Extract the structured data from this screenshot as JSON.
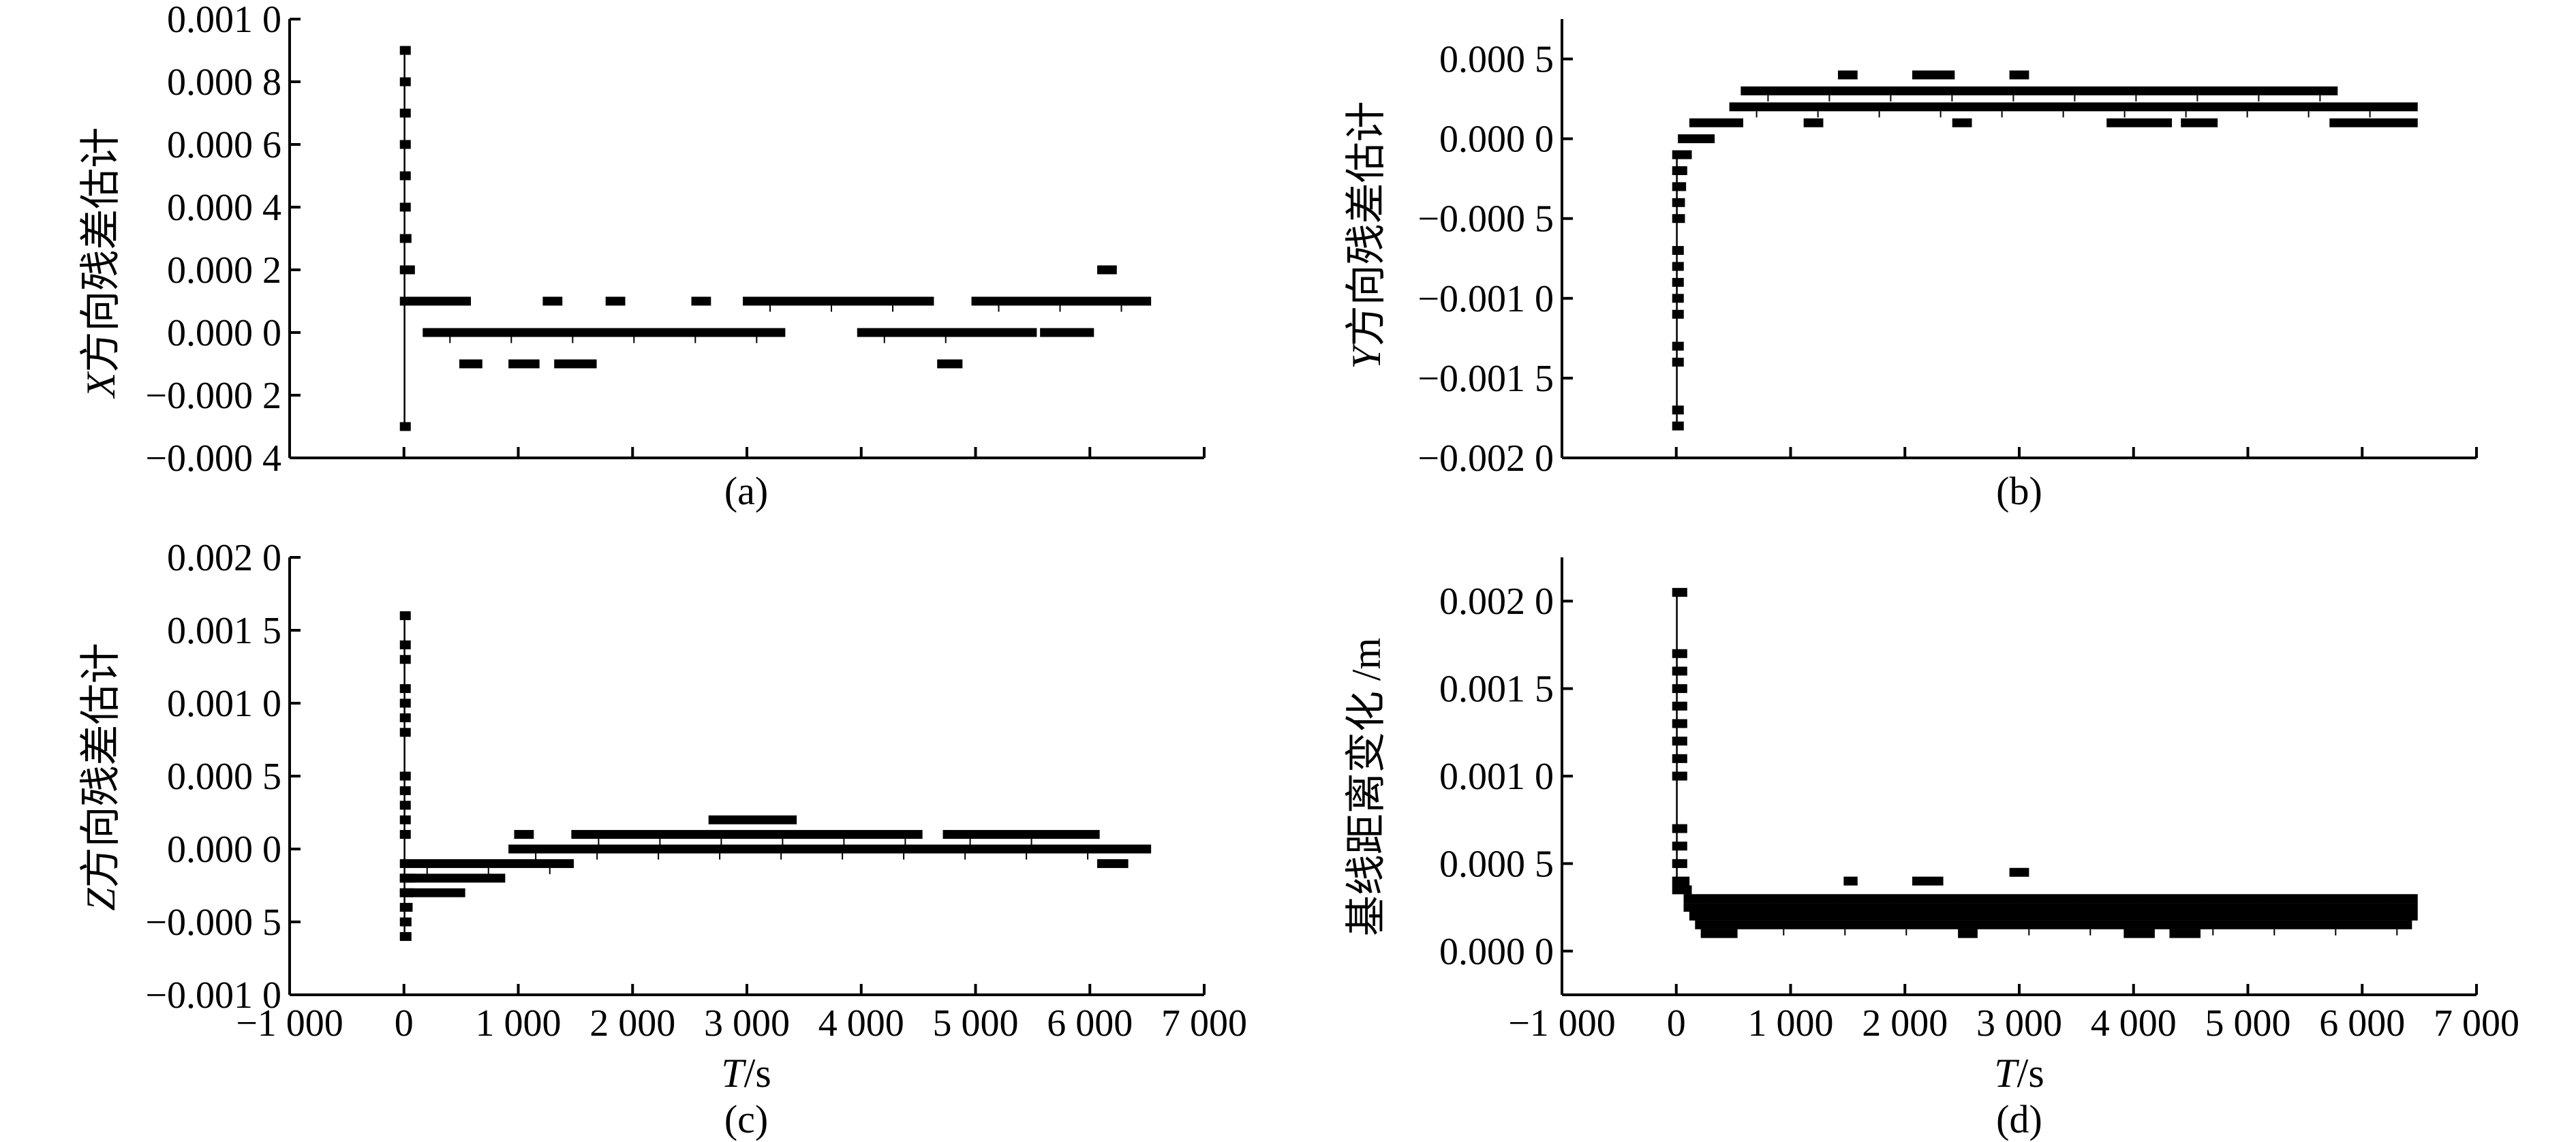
{
  "figure": {
    "captions": [
      "(a)",
      "(b)",
      "(c)",
      "(d)"
    ]
  },
  "chart_data": [
    {
      "id": "a",
      "type": "scatter",
      "caption": "(a)",
      "ylabel_italic": "X",
      "ylabel_rest": "方向残差估计",
      "xlabel": "",
      "xlim": [
        -1000,
        7000
      ],
      "ylim": [
        -0.0004,
        0.001
      ],
      "yticks": [
        -0.0004,
        -0.0002,
        0.0,
        0.0002,
        0.0004,
        0.0006,
        0.0008,
        0.001
      ],
      "yticklabels": [
        "−0.000 4",
        "−0.000 2",
        "0.000 0",
        "0.000 2",
        "0.000 4",
        "0.000 6",
        "0.000 8",
        "0.001 0"
      ],
      "xticks": [
        -1000,
        0,
        1000,
        2000,
        3000,
        4000,
        5000,
        6000,
        7000
      ],
      "xticklabels": [],
      "segments": [
        {
          "x": [
            0,
            20
          ],
          "y": 0.0009
        },
        {
          "x": [
            0,
            20
          ],
          "y": 0.0008
        },
        {
          "x": [
            0,
            20
          ],
          "y": 0.0007
        },
        {
          "x": [
            0,
            20
          ],
          "y": 0.0006
        },
        {
          "x": [
            0,
            20
          ],
          "y": 0.0005
        },
        {
          "x": [
            0,
            20
          ],
          "y": 0.0004
        },
        {
          "x": [
            0,
            30
          ],
          "y": 0.0003
        },
        {
          "x": [
            0,
            60
          ],
          "y": 0.0002
        },
        {
          "x": [
            0,
            20
          ],
          "y": -0.0003
        },
        {
          "x": [
            0,
            550
          ],
          "y": 0.0001
        },
        {
          "x": [
            200,
            3300
          ],
          "y": 0.0
        },
        {
          "x": [
            1250,
            1350
          ],
          "y": 0.0001
        },
        {
          "x": [
            1800,
            1900
          ],
          "y": 0.0001
        },
        {
          "x": [
            2550,
            2650
          ],
          "y": 0.0001
        },
        {
          "x": [
            3000,
            4600
          ],
          "y": 0.0001
        },
        {
          "x": [
            4000,
            5200
          ],
          "y": 0.0
        },
        {
          "x": [
            5000,
            6500
          ],
          "y": 0.0001
        },
        {
          "x": [
            5200,
            5500
          ],
          "y": 0.0
        },
        {
          "x": [
            5600,
            6000
          ],
          "y": 0.0
        },
        {
          "x": [
            6100,
            6200
          ],
          "y": 0.0002
        },
        {
          "x": [
            520,
            650
          ],
          "y": -0.0001
        },
        {
          "x": [
            950,
            1150
          ],
          "y": -0.0001
        },
        {
          "x": [
            1350,
            1650
          ],
          "y": -0.0001
        },
        {
          "x": [
            4700,
            4850
          ],
          "y": -0.0001
        }
      ]
    },
    {
      "id": "b",
      "type": "scatter",
      "caption": "(b)",
      "ylabel_italic": "Y",
      "ylabel_rest": "方向残差估计",
      "xlabel": "",
      "xlim": [
        -1000,
        7000
      ],
      "ylim": [
        -0.002,
        0.00075
      ],
      "yticks": [
        -0.002,
        -0.0015,
        -0.001,
        -0.0005,
        0.0,
        0.0005
      ],
      "yticklabels": [
        "−0.002 0",
        "−0.001 5",
        "−0.001 0",
        "−0.000 5",
        "0.000 0",
        "0.000 5"
      ],
      "xticks": [
        -1000,
        0,
        1000,
        2000,
        3000,
        4000,
        5000,
        6000,
        7000
      ],
      "xticklabels": [],
      "segments": [
        {
          "x": [
            0,
            30
          ],
          "y": -0.0018
        },
        {
          "x": [
            0,
            30
          ],
          "y": -0.0017
        },
        {
          "x": [
            0,
            30
          ],
          "y": -0.0014
        },
        {
          "x": [
            0,
            30
          ],
          "y": -0.0013
        },
        {
          "x": [
            0,
            30
          ],
          "y": -0.0011
        },
        {
          "x": [
            0,
            30
          ],
          "y": -0.001
        },
        {
          "x": [
            0,
            30
          ],
          "y": -0.0009
        },
        {
          "x": [
            0,
            30
          ],
          "y": -0.0008
        },
        {
          "x": [
            0,
            30
          ],
          "y": -0.0007
        },
        {
          "x": [
            0,
            40
          ],
          "y": -0.0005
        },
        {
          "x": [
            0,
            40
          ],
          "y": -0.0004
        },
        {
          "x": [
            0,
            50
          ],
          "y": -0.0003
        },
        {
          "x": [
            0,
            60
          ],
          "y": -0.0002
        },
        {
          "x": [
            0,
            100
          ],
          "y": -0.0001
        },
        {
          "x": [
            50,
            300
          ],
          "y": 0.0
        },
        {
          "x": [
            150,
            550
          ],
          "y": 0.0001
        },
        {
          "x": [
            500,
            6450
          ],
          "y": 0.0002
        },
        {
          "x": [
            600,
            5750
          ],
          "y": 0.0003
        },
        {
          "x": [
            1450,
            1550
          ],
          "y": 0.0004
        },
        {
          "x": [
            2100,
            2400
          ],
          "y": 0.0004
        },
        {
          "x": [
            2950,
            3050
          ],
          "y": 0.0004
        },
        {
          "x": [
            1150,
            1250
          ],
          "y": 0.0001
        },
        {
          "x": [
            2450,
            2550
          ],
          "y": 0.0001
        },
        {
          "x": [
            3800,
            4300
          ],
          "y": 0.0001
        },
        {
          "x": [
            4450,
            4700
          ],
          "y": 0.0001
        },
        {
          "x": [
            5750,
            6450
          ],
          "y": 0.0001
        }
      ]
    },
    {
      "id": "c",
      "type": "scatter",
      "caption": "(c)",
      "ylabel_italic": "Z",
      "ylabel_rest": "方向残差估计",
      "xlabel_italic": "T",
      "xlabel_rest": "/s",
      "xlim": [
        -1000,
        7000
      ],
      "ylim": [
        -0.001,
        0.002
      ],
      "yticks": [
        -0.001,
        -0.0005,
        0.0,
        0.0005,
        0.001,
        0.0015,
        0.002
      ],
      "yticklabels": [
        "−0.001 0",
        "−0.000 5",
        "0.000 0",
        "0.000 5",
        "0.001 0",
        "0.001 5",
        "0.002 0"
      ],
      "xticks": [
        -1000,
        0,
        1000,
        2000,
        3000,
        4000,
        5000,
        6000,
        7000
      ],
      "xticklabels": [
        "−1 000",
        "0",
        "1 000",
        "2 000",
        "3 000",
        "4 000",
        "5 000",
        "6 000",
        "7 000"
      ],
      "segments": [
        {
          "x": [
            0,
            20
          ],
          "y": 0.0016
        },
        {
          "x": [
            0,
            20
          ],
          "y": 0.0014
        },
        {
          "x": [
            0,
            20
          ],
          "y": 0.0013
        },
        {
          "x": [
            0,
            20
          ],
          "y": 0.0011
        },
        {
          "x": [
            0,
            20
          ],
          "y": 0.001
        },
        {
          "x": [
            0,
            20
          ],
          "y": 0.0009
        },
        {
          "x": [
            0,
            20
          ],
          "y": 0.0008
        },
        {
          "x": [
            0,
            20
          ],
          "y": 0.0005
        },
        {
          "x": [
            0,
            20
          ],
          "y": 0.0004
        },
        {
          "x": [
            0,
            20
          ],
          "y": 0.0003
        },
        {
          "x": [
            0,
            20
          ],
          "y": 0.0002
        },
        {
          "x": [
            0,
            20
          ],
          "y": 0.0001
        },
        {
          "x": [
            0,
            60
          ],
          "y": -0.0002
        },
        {
          "x": [
            0,
            50
          ],
          "y": -0.0003
        },
        {
          "x": [
            0,
            40
          ],
          "y": -0.0004
        },
        {
          "x": [
            0,
            30
          ],
          "y": -0.0005
        },
        {
          "x": [
            0,
            30
          ],
          "y": -0.0006
        },
        {
          "x": [
            0,
            1450
          ],
          "y": -0.0001
        },
        {
          "x": [
            0,
            850
          ],
          "y": -0.0002
        },
        {
          "x": [
            0,
            500
          ],
          "y": -0.0003
        },
        {
          "x": [
            950,
            6500
          ],
          "y": 0.0
        },
        {
          "x": [
            1500,
            4500
          ],
          "y": 0.0001
        },
        {
          "x": [
            4750,
            6050
          ],
          "y": 0.0001
        },
        {
          "x": [
            1000,
            1100
          ],
          "y": 0.0001
        },
        {
          "x": [
            2700,
            3400
          ],
          "y": 0.0002
        },
        {
          "x": [
            6100,
            6300
          ],
          "y": -0.0001
        }
      ]
    },
    {
      "id": "d",
      "type": "scatter",
      "caption": "(d)",
      "ylabel": "基线距离变化 /m",
      "xlabel_italic": "T",
      "xlabel_rest": "/s",
      "xlim": [
        -1000,
        7000
      ],
      "ylim": [
        -0.00025,
        0.00225
      ],
      "yticks": [
        0.0,
        0.0005,
        0.001,
        0.0015,
        0.002
      ],
      "yticklabels": [
        "0.000 0",
        "0.000 5",
        "0.001 0",
        "0.001 5",
        "0.002 0"
      ],
      "xticks": [
        -1000,
        0,
        1000,
        2000,
        3000,
        4000,
        5000,
        6000,
        7000
      ],
      "xticklabels": [
        "−1 000",
        "0",
        "1 000",
        "2 000",
        "3 000",
        "4 000",
        "5 000",
        "6 000",
        "7 000"
      ],
      "segments": [
        {
          "x": [
            0,
            60
          ],
          "y": 0.00205
        },
        {
          "x": [
            0,
            60
          ],
          "y": 0.0017
        },
        {
          "x": [
            0,
            60
          ],
          "y": 0.0016
        },
        {
          "x": [
            0,
            60
          ],
          "y": 0.0015
        },
        {
          "x": [
            0,
            60
          ],
          "y": 0.0014
        },
        {
          "x": [
            0,
            60
          ],
          "y": 0.0013
        },
        {
          "x": [
            0,
            60
          ],
          "y": 0.0012
        },
        {
          "x": [
            0,
            60
          ],
          "y": 0.0011
        },
        {
          "x": [
            0,
            60
          ],
          "y": 0.001
        },
        {
          "x": [
            0,
            60
          ],
          "y": 0.0007
        },
        {
          "x": [
            0,
            60
          ],
          "y": 0.0006
        },
        {
          "x": [
            0,
            60
          ],
          "y": 0.0005
        },
        {
          "x": [
            0,
            80
          ],
          "y": 0.0004
        },
        {
          "x": [
            0,
            100
          ],
          "y": 0.00035
        },
        {
          "x": [
            100,
            6450
          ],
          "y": 0.0003
        },
        {
          "x": [
            100,
            6450
          ],
          "y": 0.00025
        },
        {
          "x": [
            150,
            6450
          ],
          "y": 0.0002
        },
        {
          "x": [
            200,
            6400
          ],
          "y": 0.00015
        },
        {
          "x": [
            250,
            500
          ],
          "y": 0.0001
        },
        {
          "x": [
            1500,
            1550
          ],
          "y": 0.0004
        },
        {
          "x": [
            2100,
            2300
          ],
          "y": 0.0004
        },
        {
          "x": [
            2950,
            3050
          ],
          "y": 0.00045
        },
        {
          "x": [
            2500,
            2600
          ],
          "y": 0.0001
        },
        {
          "x": [
            3950,
            4150
          ],
          "y": 0.0001
        },
        {
          "x": [
            4350,
            4550
          ],
          "y": 0.0001
        }
      ]
    }
  ]
}
